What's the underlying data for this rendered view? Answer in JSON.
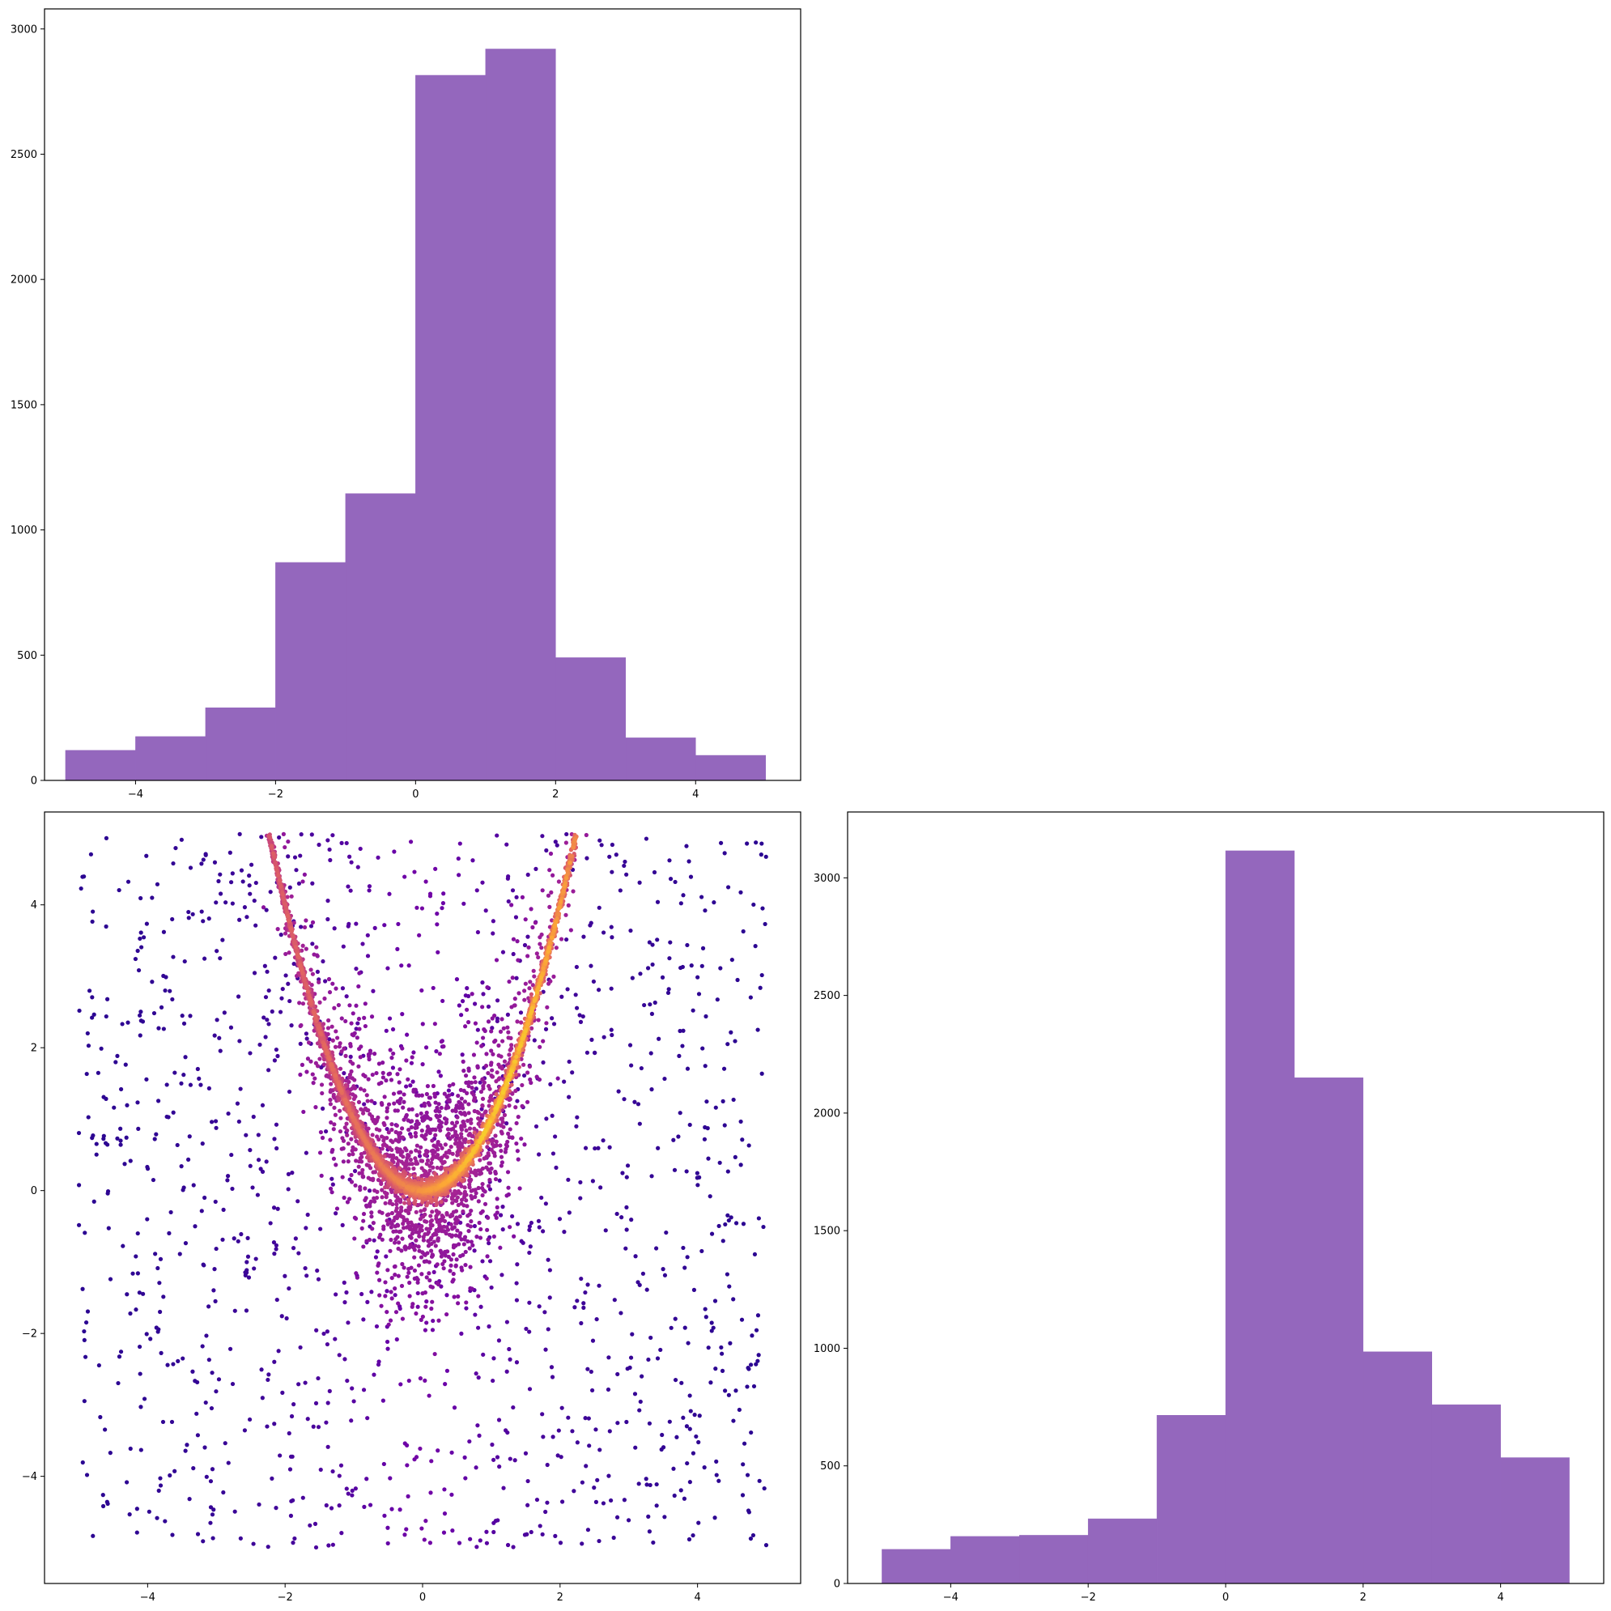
{
  "chart_data": [
    {
      "type": "bar",
      "subplot": "top-left",
      "histogram": true,
      "bin_edges": [
        -5,
        -4,
        -3,
        -2,
        -1,
        0,
        1,
        2,
        3,
        4,
        5
      ],
      "values": [
        120,
        175,
        290,
        870,
        1145,
        2815,
        2920,
        490,
        170,
        100
      ],
      "xlim": [
        -5.3,
        5.5
      ],
      "ylim": [
        0,
        3080
      ],
      "xticks": [
        -4,
        -2,
        0,
        2,
        4
      ],
      "xtick_labels": [
        "−4",
        "−2",
        "0",
        "2",
        "4"
      ],
      "yticks": [
        0,
        500,
        1000,
        1500,
        2000,
        2500,
        3000
      ],
      "ytick_labels": [
        "0",
        "500",
        "1000",
        "1500",
        "2000",
        "2500",
        "3000"
      ],
      "grid": false,
      "bar_color": "#9467bd"
    },
    {
      "type": "scatter",
      "subplot": "bottom-left",
      "description_of_data": "density-colored points: a parabolic ridge y = x^2 for x between about -2.3 and 2.3 with scatter around it, plus uniform background points over [-5,5] x [-5,5]",
      "ridge_curve": "y = x^2",
      "ridge_x_range": [
        -2.3,
        2.3
      ],
      "background_range": {
        "x": [
          -5,
          5
        ],
        "y": [
          -5,
          5
        ]
      },
      "xlim": [
        -5.5,
        5.5
      ],
      "ylim": [
        -5.5,
        5.3
      ],
      "xticks": [
        -4,
        -2,
        0,
        2,
        4
      ],
      "xtick_labels": [
        "−4",
        "−2",
        "0",
        "2",
        "4"
      ],
      "yticks": [
        -4,
        -2,
        0,
        2,
        4
      ],
      "ytick_labels": [
        "−4",
        "−2",
        "0",
        "2",
        "4"
      ],
      "grid": false,
      "colormap": "plasma",
      "colormap_stops": [
        "#0d0887",
        "#6a00a8",
        "#b12a90",
        "#e16462",
        "#fca636",
        "#f0f921"
      ]
    },
    {
      "type": "bar",
      "subplot": "bottom-right",
      "histogram": true,
      "bin_edges": [
        -5,
        -4,
        -3,
        -2,
        -1,
        0,
        1,
        2,
        3,
        4,
        5
      ],
      "values": [
        145,
        200,
        205,
        275,
        715,
        3115,
        2150,
        985,
        760,
        535
      ],
      "xlim": [
        -5.5,
        5.5
      ],
      "ylim": [
        0,
        3280
      ],
      "xticks": [
        -4,
        -2,
        0,
        2,
        4
      ],
      "xtick_labels": [
        "−4",
        "−2",
        "0",
        "2",
        "4"
      ],
      "yticks": [
        0,
        500,
        1000,
        1500,
        2000,
        2500,
        3000
      ],
      "ytick_labels": [
        "0",
        "500",
        "1000",
        "1500",
        "2000",
        "2500",
        "3000"
      ],
      "grid": false,
      "bar_color": "#9467bd"
    }
  ]
}
